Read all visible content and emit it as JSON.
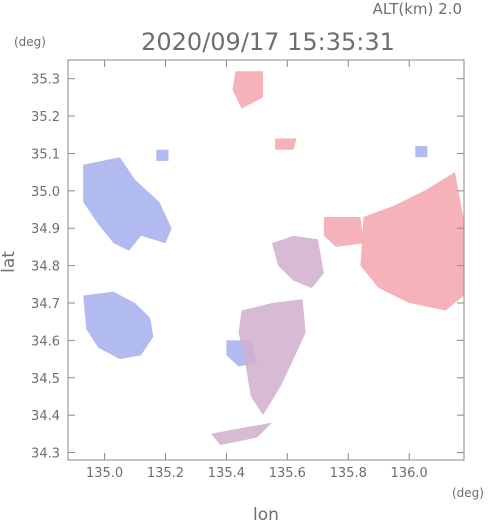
{
  "header": {
    "altitude_label": "ALT(km)  2.0",
    "datetime": "2020/09/17 15:35:31"
  },
  "colors": {
    "approach": "#aab4ee",
    "recede": "#f4aab0",
    "axis": "#8a8a8a",
    "text": "#6e6e6e"
  },
  "chart_data": {
    "type": "heatmap",
    "xlabel": "lon",
    "ylabel": "lat",
    "x_unit": "(deg)",
    "y_unit": "(deg)",
    "xlim": [
      134.88,
      136.18
    ],
    "ylim": [
      34.28,
      35.35
    ],
    "x_ticks": [
      {
        "value": 135.0,
        "label": "135.0"
      },
      {
        "value": 135.2,
        "label": "135.2"
      },
      {
        "value": 135.4,
        "label": "135.4"
      },
      {
        "value": 135.6,
        "label": "135.6"
      },
      {
        "value": 135.8,
        "label": "135.8"
      },
      {
        "value": 136.0,
        "label": "136.0"
      }
    ],
    "y_ticks": [
      {
        "value": 34.3,
        "label": "34.3"
      },
      {
        "value": 34.4,
        "label": "34.4"
      },
      {
        "value": 34.5,
        "label": "34.5"
      },
      {
        "value": 34.6,
        "label": "34.6"
      },
      {
        "value": 34.7,
        "label": "34.7"
      },
      {
        "value": 34.8,
        "label": "34.8"
      },
      {
        "value": 34.9,
        "label": "34.9"
      },
      {
        "value": 35.0,
        "label": "35.0"
      },
      {
        "value": 35.1,
        "label": "35.1"
      },
      {
        "value": 35.2,
        "label": "35.2"
      },
      {
        "value": 35.3,
        "label": "35.3"
      }
    ],
    "regions": [
      {
        "kind": "approach",
        "polygon": [
          [
            134.93,
            35.07
          ],
          [
            135.05,
            35.09
          ],
          [
            135.1,
            35.03
          ],
          [
            135.18,
            34.97
          ],
          [
            135.22,
            34.9
          ],
          [
            135.2,
            34.86
          ],
          [
            135.12,
            34.88
          ],
          [
            135.08,
            34.84
          ],
          [
            135.03,
            34.86
          ],
          [
            134.98,
            34.91
          ],
          [
            134.93,
            34.97
          ]
        ]
      },
      {
        "kind": "approach",
        "polygon": [
          [
            134.93,
            34.72
          ],
          [
            135.03,
            34.73
          ],
          [
            135.1,
            34.7
          ],
          [
            135.15,
            34.66
          ],
          [
            135.16,
            34.61
          ],
          [
            135.12,
            34.56
          ],
          [
            135.05,
            34.55
          ],
          [
            134.98,
            34.58
          ],
          [
            134.94,
            34.63
          ]
        ]
      },
      {
        "kind": "approach",
        "polygon": [
          [
            135.4,
            34.6
          ],
          [
            135.48,
            34.6
          ],
          [
            135.5,
            34.54
          ],
          [
            135.44,
            34.53
          ],
          [
            135.4,
            34.56
          ]
        ]
      },
      {
        "kind": "mixed",
        "polygon": [
          [
            135.45,
            34.68
          ],
          [
            135.55,
            34.7
          ],
          [
            135.65,
            34.71
          ],
          [
            135.66,
            34.62
          ],
          [
            135.62,
            34.55
          ],
          [
            135.58,
            34.48
          ],
          [
            135.52,
            34.4
          ],
          [
            135.48,
            34.45
          ],
          [
            135.46,
            34.55
          ],
          [
            135.44,
            34.62
          ]
        ]
      },
      {
        "kind": "mixed",
        "polygon": [
          [
            135.55,
            34.86
          ],
          [
            135.62,
            34.88
          ],
          [
            135.7,
            34.87
          ],
          [
            135.72,
            34.78
          ],
          [
            135.68,
            34.74
          ],
          [
            135.62,
            34.76
          ],
          [
            135.57,
            34.8
          ]
        ]
      },
      {
        "kind": "recede",
        "polygon": [
          [
            135.85,
            34.93
          ],
          [
            135.95,
            34.96
          ],
          [
            136.05,
            35.0
          ],
          [
            136.15,
            35.05
          ],
          [
            136.18,
            34.92
          ],
          [
            136.18,
            34.72
          ],
          [
            136.12,
            34.68
          ],
          [
            136.0,
            34.7
          ],
          [
            135.9,
            34.74
          ],
          [
            135.84,
            34.8
          ]
        ]
      },
      {
        "kind": "recede",
        "polygon": [
          [
            135.43,
            35.32
          ],
          [
            135.52,
            35.32
          ],
          [
            135.52,
            35.25
          ],
          [
            135.45,
            35.22
          ],
          [
            135.42,
            35.27
          ]
        ]
      },
      {
        "kind": "recede",
        "polygon": [
          [
            135.56,
            35.14
          ],
          [
            135.63,
            35.14
          ],
          [
            135.62,
            35.11
          ],
          [
            135.56,
            35.11
          ]
        ]
      },
      {
        "kind": "recede",
        "polygon": [
          [
            135.72,
            34.93
          ],
          [
            135.84,
            34.93
          ],
          [
            135.85,
            34.86
          ],
          [
            135.76,
            34.85
          ],
          [
            135.72,
            34.88
          ]
        ]
      },
      {
        "kind": "approach",
        "polygon": [
          [
            136.02,
            35.12
          ],
          [
            136.06,
            35.12
          ],
          [
            136.06,
            35.09
          ],
          [
            136.02,
            35.09
          ]
        ]
      },
      {
        "kind": "approach",
        "polygon": [
          [
            135.17,
            35.11
          ],
          [
            135.21,
            35.11
          ],
          [
            135.21,
            35.08
          ],
          [
            135.17,
            35.08
          ]
        ]
      },
      {
        "kind": "mixed",
        "polygon": [
          [
            135.35,
            34.35
          ],
          [
            135.48,
            34.37
          ],
          [
            135.55,
            34.38
          ],
          [
            135.5,
            34.34
          ],
          [
            135.38,
            34.32
          ]
        ]
      }
    ]
  }
}
